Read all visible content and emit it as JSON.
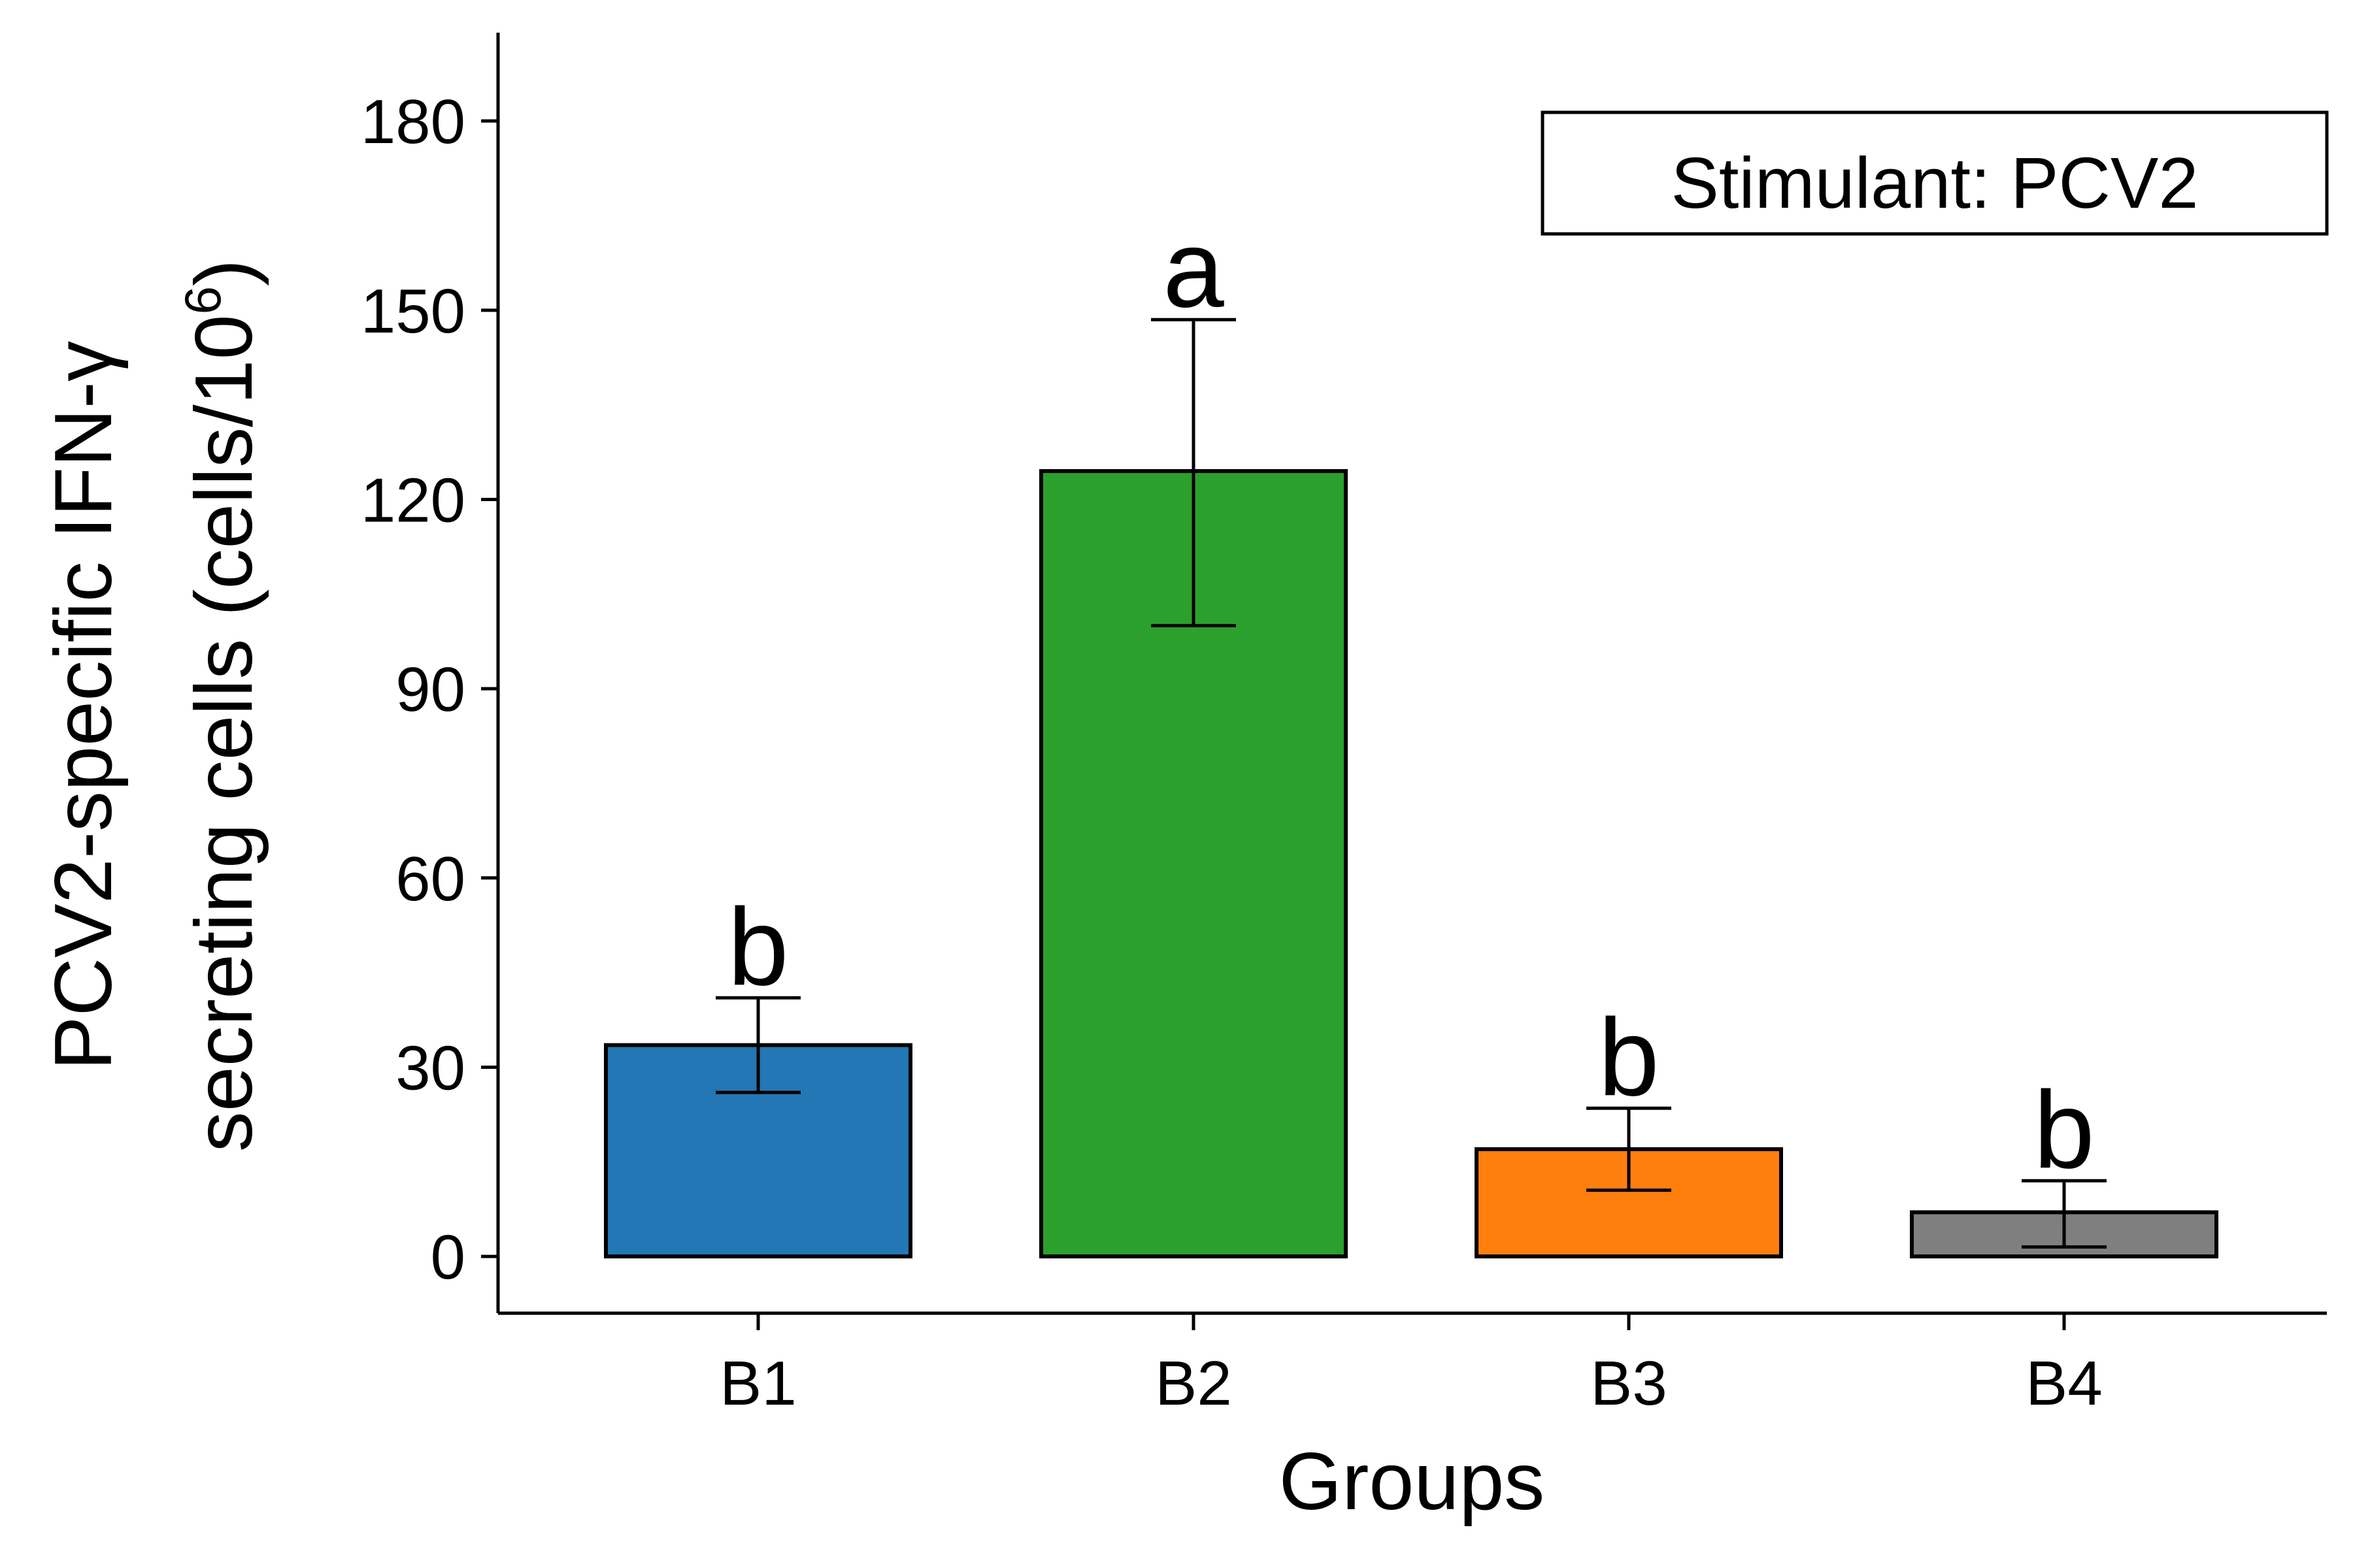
{
  "chart_data": {
    "type": "bar",
    "xlabel": "Groups",
    "ylabel_line1": "PCV2-specific IFN-γ",
    "ylabel_line2_prefix": "secreting cells (cells/10",
    "ylabel_line2_sup": "6",
    "ylabel_line2_suffix": ")",
    "annotation": "Stimulant: PCV2",
    "categories": [
      "B1",
      "B2",
      "B3",
      "B4"
    ],
    "values": [
      33.5,
      124.5,
      17.0,
      7.0
    ],
    "error_low": [
      26.0,
      100.0,
      10.5,
      1.5
    ],
    "error_high": [
      41.0,
      148.5,
      23.5,
      12.0
    ],
    "significance": [
      "b",
      "a",
      "b",
      "b"
    ],
    "colors": [
      "#2277b4",
      "#2ca02c",
      "#ff7f0e",
      "#7f7f7f"
    ],
    "ylim": [
      -9,
      194
    ],
    "yticks": [
      0,
      30,
      60,
      90,
      120,
      150,
      180
    ],
    "grid": false,
    "legend": "top-right"
  }
}
